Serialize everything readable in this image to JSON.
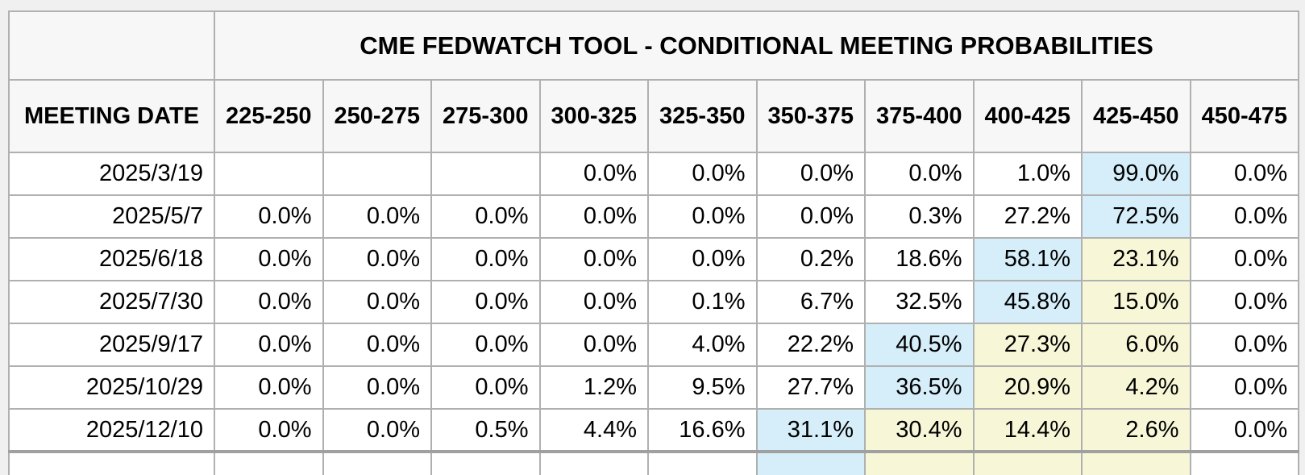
{
  "chart_data": {
    "type": "table",
    "title": "CME FEDWATCH TOOL - CONDITIONAL MEETING PROBABILITIES",
    "corner_label": "",
    "columns": [
      "MEETING DATE",
      "225-250",
      "250-275",
      "275-300",
      "300-325",
      "325-350",
      "350-375",
      "375-400",
      "400-425",
      "425-450",
      "450-475"
    ],
    "rows": [
      {
        "date": "2025/3/19",
        "values": [
          "",
          "",
          "",
          "0.0%",
          "0.0%",
          "0.0%",
          "0.0%",
          "1.0%",
          "99.0%",
          "0.0%"
        ],
        "highlights": [
          "",
          "",
          "",
          "",
          "",
          "",
          "",
          "",
          "blue",
          ""
        ]
      },
      {
        "date": "2025/5/7",
        "values": [
          "0.0%",
          "0.0%",
          "0.0%",
          "0.0%",
          "0.0%",
          "0.0%",
          "0.3%",
          "27.2%",
          "72.5%",
          "0.0%"
        ],
        "highlights": [
          "",
          "",
          "",
          "",
          "",
          "",
          "",
          "",
          "blue",
          ""
        ]
      },
      {
        "date": "2025/6/18",
        "values": [
          "0.0%",
          "0.0%",
          "0.0%",
          "0.0%",
          "0.0%",
          "0.2%",
          "18.6%",
          "58.1%",
          "23.1%",
          "0.0%"
        ],
        "highlights": [
          "",
          "",
          "",
          "",
          "",
          "",
          "",
          "blue",
          "yellow",
          ""
        ]
      },
      {
        "date": "2025/7/30",
        "values": [
          "0.0%",
          "0.0%",
          "0.0%",
          "0.0%",
          "0.1%",
          "6.7%",
          "32.5%",
          "45.8%",
          "15.0%",
          "0.0%"
        ],
        "highlights": [
          "",
          "",
          "",
          "",
          "",
          "",
          "",
          "blue",
          "yellow",
          ""
        ]
      },
      {
        "date": "2025/9/17",
        "values": [
          "0.0%",
          "0.0%",
          "0.0%",
          "0.0%",
          "4.0%",
          "22.2%",
          "40.5%",
          "27.3%",
          "6.0%",
          "0.0%"
        ],
        "highlights": [
          "",
          "",
          "",
          "",
          "",
          "",
          "blue",
          "yellow",
          "yellow",
          ""
        ]
      },
      {
        "date": "2025/10/29",
        "values": [
          "0.0%",
          "0.0%",
          "0.0%",
          "1.2%",
          "9.5%",
          "27.7%",
          "36.5%",
          "20.9%",
          "4.2%",
          "0.0%"
        ],
        "highlights": [
          "",
          "",
          "",
          "",
          "",
          "",
          "blue",
          "yellow",
          "yellow",
          ""
        ]
      },
      {
        "date": "2025/12/10",
        "values": [
          "0.0%",
          "0.0%",
          "0.5%",
          "4.4%",
          "16.6%",
          "31.1%",
          "30.4%",
          "14.4%",
          "2.6%",
          "0.0%"
        ],
        "highlights": [
          "",
          "",
          "",
          "",
          "",
          "blue",
          "yellow",
          "yellow",
          "yellow",
          ""
        ]
      }
    ],
    "partial_row": {
      "date": "",
      "values": [
        "",
        "",
        "",
        "",
        "",
        "",
        "",
        "",
        "",
        ""
      ],
      "highlights": [
        "",
        "",
        "",
        "",
        "",
        "blue",
        "yellow",
        "yellow",
        "yellow",
        ""
      ]
    }
  },
  "colors": {
    "page_bg": "#f0f0f0",
    "header_bg": "#f7f7f7",
    "cell_bg": "#ffffff",
    "border": "#b0b0b0",
    "thick_border": "#a0a0a0",
    "highlight_blue": "#d5eef9",
    "highlight_yellow": "#f7f7d8",
    "text": "#000000"
  }
}
